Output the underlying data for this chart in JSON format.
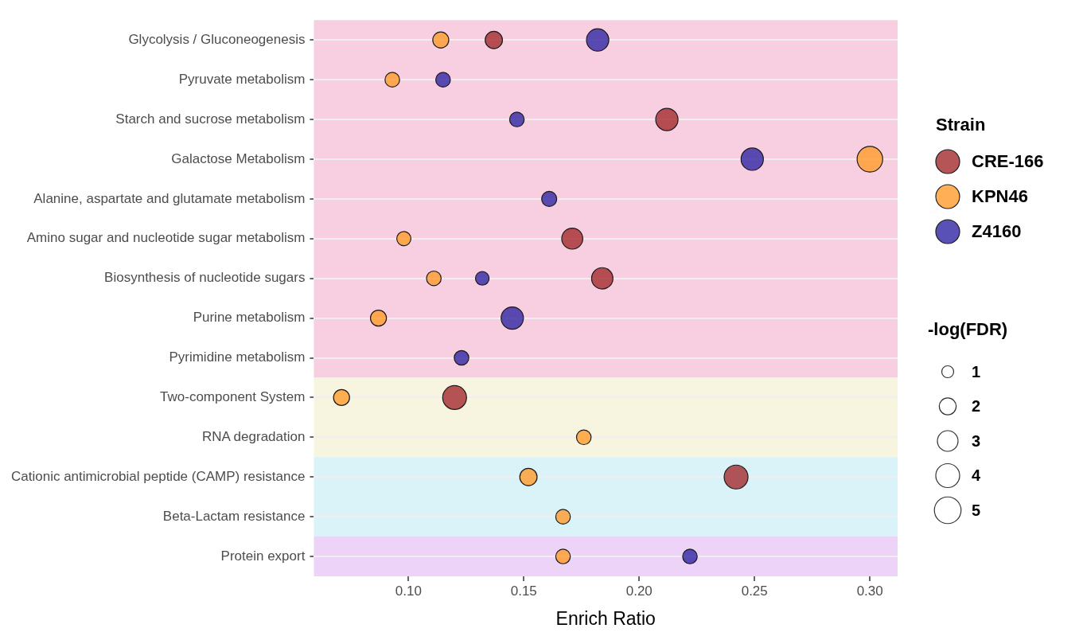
{
  "chart_data": {
    "type": "bubble",
    "orientation": "horizontal",
    "xlabel": "Enrich Ratio",
    "legend_title": "Strain",
    "categories": [
      "Glycolysis / Gluconeogenesis",
      "Pyruvate metabolism",
      "Starch and sucrose metabolism",
      "Galactose Metabolism",
      "Alanine, aspartate and glutamate metabolism",
      "Amino sugar and nucleotide sugar metabolism",
      "Biosynthesis of nucleotide sugars",
      "Purine metabolism",
      "Pyrimidine metabolism",
      "Two-component System",
      "RNA degradation",
      "Cationic antimicrobial peptide (CAMP) resistance",
      "Beta-Lactam resistance",
      "Protein export"
    ],
    "series": [
      {
        "name": "CRE-166",
        "color": "#a32a2e",
        "values": [
          0.137,
          null,
          0.212,
          null,
          null,
          0.171,
          0.184,
          null,
          null,
          0.12,
          null,
          0.242,
          null,
          null
        ],
        "sizes": [
          2.1,
          null,
          3.5,
          null,
          null,
          3.1,
          3.2,
          null,
          null,
          4.0,
          null,
          4.0,
          null,
          null
        ]
      },
      {
        "name": "KPN46",
        "color": "#ff9b2a",
        "values": [
          0.114,
          0.093,
          null,
          0.3,
          null,
          0.098,
          0.111,
          0.087,
          null,
          0.071,
          0.176,
          0.152,
          0.167,
          0.167
        ],
        "sizes": [
          1.8,
          1.5,
          null,
          4.6,
          null,
          1.4,
          1.5,
          1.8,
          null,
          1.8,
          1.5,
          2.1,
          1.5,
          1.5
        ]
      },
      {
        "name": "Z4160",
        "color": "#2f26a3",
        "values": [
          0.182,
          0.115,
          0.147,
          0.249,
          0.161,
          null,
          0.132,
          0.145,
          0.123,
          null,
          null,
          null,
          null,
          0.222
        ],
        "sizes": [
          3.5,
          1.5,
          1.5,
          3.5,
          1.6,
          null,
          1.3,
          3.5,
          1.5,
          null,
          null,
          null,
          null,
          1.5
        ]
      }
    ],
    "size_legend": [
      1,
      2,
      3,
      4,
      5
    ],
    "annotations": [
      "-log(FDR)"
    ],
    "xlim": [
      0.059,
      0.312
    ],
    "xticks": [
      {
        "value": 0.1,
        "label": "0.10"
      },
      {
        "value": 0.15,
        "label": "0.15"
      },
      {
        "value": 0.2,
        "label": "0.20"
      },
      {
        "value": 0.25,
        "label": "0.25"
      },
      {
        "value": 0.3,
        "label": "0.30"
      }
    ],
    "bands": [
      {
        "axis": "y",
        "from": "Glycolysis / Gluconeogenesis",
        "to": "Pyrimidine metabolism",
        "color": "#f8cfe0"
      },
      {
        "axis": "y",
        "from": "Two-component System",
        "to": "RNA degradation",
        "color": "#f7f4df"
      },
      {
        "axis": "y",
        "from": "Cationic antimicrobial peptide (CAMP) resistance",
        "to": "Beta-Lactam resistance",
        "color": "#d9f3f8"
      },
      {
        "axis": "y",
        "from": "Protein export",
        "to": "Protein export",
        "color": "#edd3f8"
      }
    ],
    "grid": "y",
    "legend": "right",
    "marker": "circle"
  }
}
